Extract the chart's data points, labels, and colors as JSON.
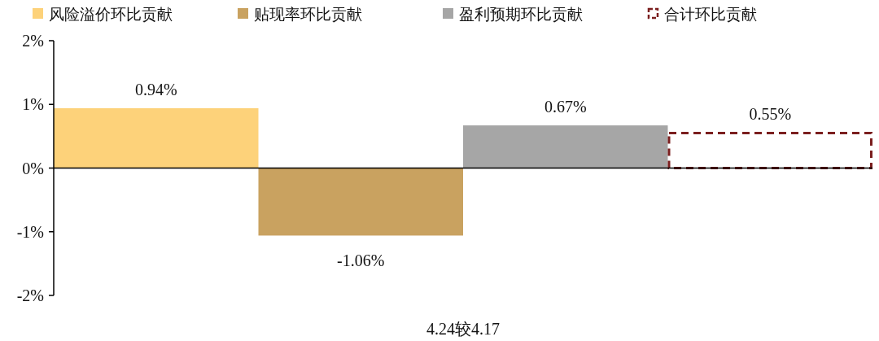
{
  "chart_data": {
    "type": "bar",
    "categories": [
      "4.24较4.17"
    ],
    "series": [
      {
        "name": "风险溢价环比贡献",
        "color": "#fdd27a",
        "values": [
          0.94
        ],
        "value_labels": [
          "0.94%"
        ]
      },
      {
        "name": "贴现率环比贡献",
        "color": "#c9a260",
        "values": [
          -1.06
        ],
        "value_labels": [
          "-1.06%"
        ]
      },
      {
        "name": "盈利预期环比贡献",
        "color": "#a6a6a6",
        "values": [
          0.67
        ],
        "value_labels": [
          "0.67%"
        ]
      },
      {
        "name": "合计环比贡献",
        "color": "#7b1f1f",
        "values": [
          0.55
        ],
        "value_labels": [
          "0.55%"
        ],
        "line_style": "dashed"
      }
    ],
    "ylim": [
      -2,
      2
    ],
    "yticks": [
      {
        "value": -2,
        "label": "-2%"
      },
      {
        "value": -1,
        "label": "-1%"
      },
      {
        "value": 0,
        "label": "0%"
      },
      {
        "value": 1,
        "label": "1%"
      },
      {
        "value": 2,
        "label": "2%"
      }
    ],
    "legend": "top"
  }
}
